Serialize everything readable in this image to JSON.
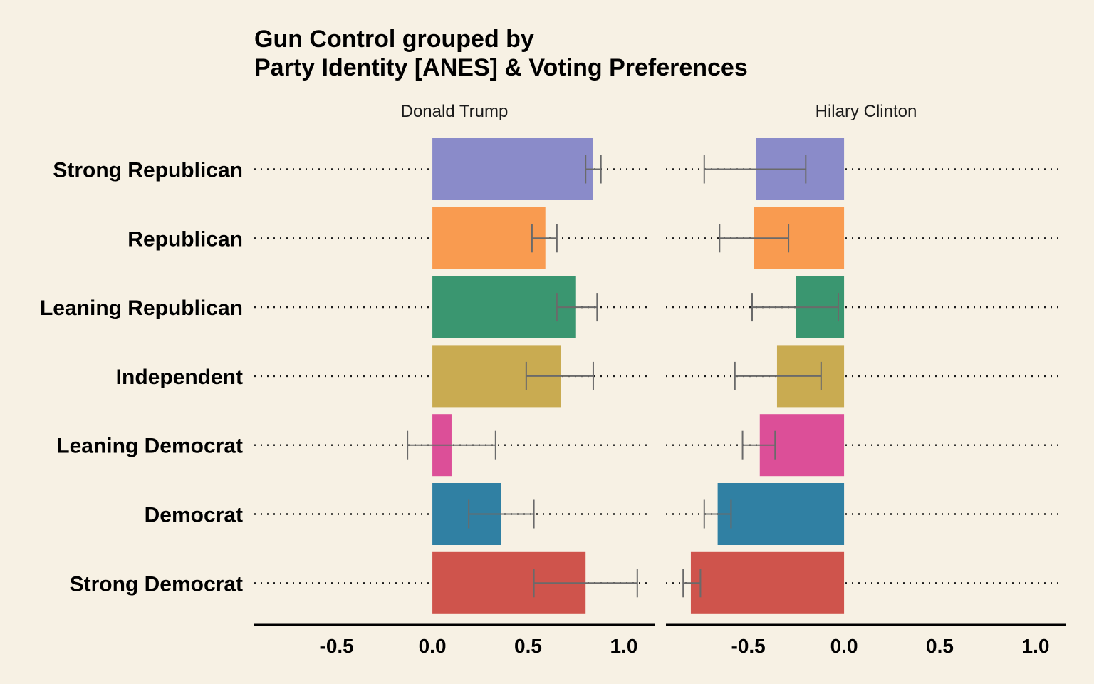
{
  "chart_data": {
    "type": "bar",
    "orientation": "horizontal",
    "title_lines": [
      "Gun Control grouped by",
      "Party Identity [ANES] & Voting Preferences"
    ],
    "xlabel": "",
    "ylabel": "",
    "xlim": [
      -0.93,
      1.16
    ],
    "x_ticks": [
      -0.5,
      0.0,
      0.5,
      1.0
    ],
    "x_tick_labels": [
      "-0.5",
      "0.0",
      "0.5",
      "1.0"
    ],
    "grid": "dotted horizontal lines at each category",
    "legend": "none",
    "categories": [
      "Strong Republican",
      "Republican",
      "Leaning Republican",
      "Independent",
      "Leaning Democrat",
      "Democrat",
      "Strong Democrat"
    ],
    "colors": [
      "#8a8bc9",
      "#f99b50",
      "#3a9670",
      "#c9ab51",
      "#dc4f98",
      "#3080a3",
      "#cf544c"
    ],
    "panels": [
      {
        "name": "Donald Trump",
        "values": [
          0.84,
          0.59,
          0.75,
          0.67,
          0.1,
          0.36,
          0.8
        ],
        "error_low": [
          0.8,
          0.52,
          0.65,
          0.49,
          -0.13,
          0.19,
          0.53
        ],
        "error_high": [
          0.88,
          0.65,
          0.86,
          0.84,
          0.33,
          0.53,
          1.07
        ]
      },
      {
        "name": "Hilary Clinton",
        "values": [
          -0.46,
          -0.47,
          -0.25,
          -0.35,
          -0.44,
          -0.66,
          -0.8
        ],
        "error_low": [
          -0.73,
          -0.65,
          -0.48,
          -0.57,
          -0.53,
          -0.73,
          -0.84
        ],
        "error_high": [
          -0.2,
          -0.29,
          -0.03,
          -0.12,
          -0.36,
          -0.59,
          -0.75
        ]
      }
    ]
  }
}
